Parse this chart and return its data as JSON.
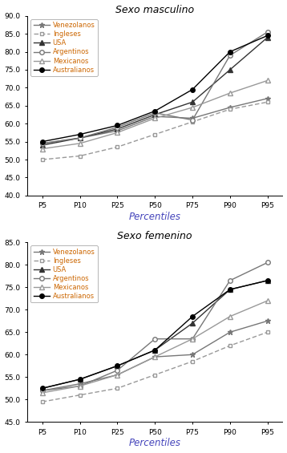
{
  "percentiles": [
    "P5",
    "P10",
    "P25",
    "P50",
    "P75",
    "P90",
    "P95"
  ],
  "masc": {
    "Venezolanos": [
      54.5,
      56.0,
      58.0,
      62.0,
      61.5,
      64.5,
      67.0
    ],
    "Ingleses": [
      50.0,
      51.0,
      53.5,
      57.0,
      60.5,
      64.0,
      66.0
    ],
    "USA": [
      54.0,
      56.0,
      58.5,
      62.5,
      66.0,
      75.0,
      84.0
    ],
    "Argentinos": [
      54.5,
      56.0,
      59.0,
      63.0,
      61.0,
      79.0,
      85.5
    ],
    "Mexicanos": [
      53.0,
      54.5,
      57.5,
      61.5,
      64.5,
      68.5,
      72.0
    ],
    "Australianos": [
      55.0,
      57.0,
      59.5,
      63.5,
      69.5,
      80.0,
      84.5
    ]
  },
  "fem": {
    "Venezolanos": [
      52.0,
      53.5,
      55.5,
      59.5,
      60.0,
      65.0,
      67.5
    ],
    "Ingleses": [
      49.5,
      51.0,
      52.5,
      55.5,
      58.5,
      62.0,
      65.0
    ],
    "USA": [
      52.5,
      54.5,
      57.5,
      61.0,
      67.0,
      74.5,
      76.5
    ],
    "Argentinos": [
      52.0,
      53.0,
      56.5,
      63.5,
      63.5,
      76.5,
      80.5
    ],
    "Mexicanos": [
      51.5,
      53.0,
      55.5,
      59.5,
      63.5,
      68.5,
      72.0
    ],
    "Australianos": [
      52.5,
      54.5,
      57.5,
      61.0,
      68.5,
      74.5,
      76.5
    ]
  },
  "title_masc": "Sexo masculino",
  "title_fem": "Sexo femenino",
  "xlabel": "Percentiles",
  "ylim_masc": [
    40.0,
    90.0
  ],
  "ylim_fem": [
    45.0,
    85.0
  ],
  "yticks_masc": [
    40.0,
    45.0,
    50.0,
    55.0,
    60.0,
    65.0,
    70.0,
    75.0,
    80.0,
    85.0,
    90.0
  ],
  "yticks_fem": [
    45.0,
    50.0,
    55.0,
    60.0,
    65.0,
    70.0,
    75.0,
    80.0,
    85.0
  ],
  "title_color": "#000000",
  "xlabel_color": "#4444bb",
  "legend_text_color": "#cc6600",
  "bg_color": "#ffffff",
  "linewidth": 1.0,
  "markersize": 4
}
